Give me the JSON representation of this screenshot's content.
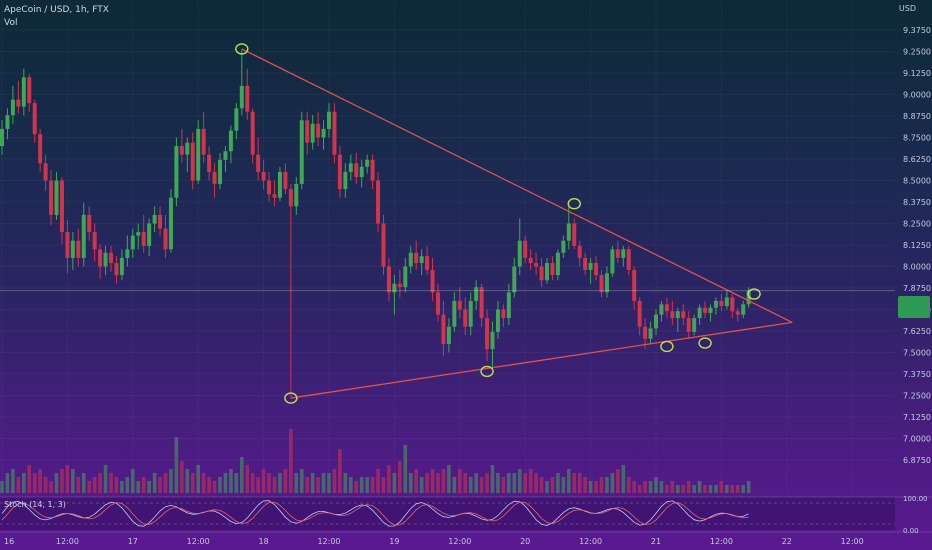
{
  "header": {
    "symbol_line": "ApeCoin / USD, 1h, FTX",
    "volume_label": "Vol",
    "currency": "USD"
  },
  "price_tag": {
    "line1": "",
    "line2": "",
    "color": "#2f9a55"
  },
  "stoch": {
    "label": "Stoch (14, 1, 3)",
    "levels": [
      "100.00",
      "0.00"
    ],
    "k_color": "#c0c8ff",
    "d_color": "#e06868"
  },
  "colors": {
    "up": "#3fa857",
    "down": "#d1344d",
    "trendline": "#e0524a",
    "marker": "#b7e14a"
  },
  "chart_data": {
    "type": "candlestick",
    "title": "ApeCoin / USD, 1h, FTX",
    "y_axis": {
      "ticks": [
        "9.3750",
        "9.2500",
        "9.1250",
        "9.0000",
        "8.8750",
        "8.7500",
        "8.6250",
        "8.5000",
        "8.3750",
        "8.2500",
        "8.1250",
        "8.0000",
        "7.8750",
        "7.7500",
        "7.6250",
        "7.5000",
        "7.3750",
        "7.2500",
        "7.1250",
        "7.0000",
        "6.8750"
      ],
      "range": [
        6.8,
        9.45
      ]
    },
    "x_axis": {
      "ticks": [
        {
          "label": "16",
          "index": 0
        },
        {
          "label": "12:00",
          "index": 12
        },
        {
          "label": "17",
          "index": 24
        },
        {
          "label": "12:00",
          "index": 36
        },
        {
          "label": "18",
          "index": 48
        },
        {
          "label": "12:00",
          "index": 60
        },
        {
          "label": "19",
          "index": 72
        },
        {
          "label": "12:00",
          "index": 84
        },
        {
          "label": "20",
          "index": 96
        },
        {
          "label": "12:00",
          "index": 108
        },
        {
          "label": "21",
          "index": 120
        },
        {
          "label": "12:00",
          "index": 132
        },
        {
          "label": "22",
          "index": 144
        },
        {
          "label": "12:00",
          "index": 156
        }
      ]
    },
    "candles": [
      [
        8.7,
        8.85,
        8.65,
        8.8
      ],
      [
        8.8,
        8.92,
        8.74,
        8.88
      ],
      [
        8.88,
        9.05,
        8.83,
        8.97
      ],
      [
        8.97,
        9.08,
        8.89,
        8.93
      ],
      [
        8.93,
        9.15,
        8.88,
        9.1
      ],
      [
        9.1,
        9.12,
        8.9,
        8.95
      ],
      [
        8.95,
        8.97,
        8.72,
        8.77
      ],
      [
        8.77,
        8.8,
        8.55,
        8.6
      ],
      [
        8.6,
        8.65,
        8.44,
        8.5
      ],
      [
        8.5,
        8.56,
        8.24,
        8.3
      ],
      [
        8.3,
        8.55,
        8.27,
        8.5
      ],
      [
        8.5,
        8.52,
        8.13,
        8.2
      ],
      [
        8.2,
        8.27,
        7.96,
        8.05
      ],
      [
        8.05,
        8.2,
        7.98,
        8.15
      ],
      [
        8.15,
        8.22,
        8.0,
        8.05
      ],
      [
        8.05,
        8.37,
        8.0,
        8.3
      ],
      [
        8.3,
        8.35,
        8.15,
        8.2
      ],
      [
        8.2,
        8.25,
        8.03,
        8.1
      ],
      [
        8.1,
        8.13,
        7.93,
        8.0
      ],
      [
        8.0,
        8.12,
        7.95,
        8.08
      ],
      [
        8.08,
        8.12,
        7.97,
        8.02
      ],
      [
        8.02,
        8.06,
        7.9,
        7.95
      ],
      [
        7.95,
        8.1,
        7.92,
        8.05
      ],
      [
        8.05,
        8.18,
        8.0,
        8.1
      ],
      [
        8.1,
        8.22,
        8.05,
        8.18
      ],
      [
        8.18,
        8.25,
        8.1,
        8.2
      ],
      [
        8.2,
        8.3,
        8.08,
        8.12
      ],
      [
        8.12,
        8.28,
        8.06,
        8.25
      ],
      [
        8.25,
        8.35,
        8.2,
        8.3
      ],
      [
        8.3,
        8.35,
        8.18,
        8.22
      ],
      [
        8.22,
        8.3,
        8.05,
        8.1
      ],
      [
        8.1,
        8.45,
        8.08,
        8.4
      ],
      [
        8.4,
        8.75,
        8.35,
        8.7
      ],
      [
        8.7,
        8.8,
        8.6,
        8.65
      ],
      [
        8.65,
        8.75,
        8.55,
        8.72
      ],
      [
        8.72,
        8.78,
        8.45,
        8.5
      ],
      [
        8.5,
        8.85,
        8.48,
        8.8
      ],
      [
        8.8,
        8.9,
        8.6,
        8.65
      ],
      [
        8.65,
        8.7,
        8.5,
        8.55
      ],
      [
        8.55,
        8.6,
        8.4,
        8.48
      ],
      [
        8.48,
        8.66,
        8.45,
        8.62
      ],
      [
        8.62,
        8.7,
        8.55,
        8.67
      ],
      [
        8.67,
        8.82,
        8.6,
        8.79
      ],
      [
        8.79,
        8.95,
        8.74,
        8.92
      ],
      [
        8.92,
        9.26,
        8.88,
        9.05
      ],
      [
        9.05,
        9.15,
        8.85,
        8.9
      ],
      [
        8.9,
        8.92,
        8.6,
        8.65
      ],
      [
        8.65,
        8.75,
        8.5,
        8.55
      ],
      [
        8.55,
        8.62,
        8.45,
        8.5
      ],
      [
        8.5,
        8.55,
        8.38,
        8.42
      ],
      [
        8.42,
        8.5,
        8.35,
        8.4
      ],
      [
        8.4,
        8.58,
        8.38,
        8.55
      ],
      [
        8.55,
        8.6,
        8.42,
        8.45
      ],
      [
        8.45,
        8.48,
        7.24,
        8.35
      ],
      [
        8.35,
        8.52,
        8.3,
        8.48
      ],
      [
        8.48,
        8.9,
        8.45,
        8.85
      ],
      [
        8.85,
        8.9,
        8.65,
        8.72
      ],
      [
        8.72,
        8.88,
        8.68,
        8.83
      ],
      [
        8.83,
        8.9,
        8.7,
        8.75
      ],
      [
        8.75,
        8.85,
        8.68,
        8.8
      ],
      [
        8.8,
        8.95,
        8.75,
        8.9
      ],
      [
        8.9,
        8.95,
        8.6,
        8.65
      ],
      [
        8.65,
        8.7,
        8.4,
        8.45
      ],
      [
        8.45,
        8.6,
        8.4,
        8.55
      ],
      [
        8.55,
        8.65,
        8.5,
        8.6
      ],
      [
        8.6,
        8.66,
        8.48,
        8.52
      ],
      [
        8.52,
        8.62,
        8.46,
        8.58
      ],
      [
        8.58,
        8.65,
        8.54,
        8.62
      ],
      [
        8.62,
        8.65,
        8.45,
        8.5
      ],
      [
        8.5,
        8.55,
        8.2,
        8.25
      ],
      [
        8.25,
        8.3,
        7.95,
        8.0
      ],
      [
        8.0,
        8.05,
        7.8,
        7.85
      ],
      [
        7.85,
        7.95,
        7.72,
        7.9
      ],
      [
        7.9,
        7.98,
        7.82,
        7.88
      ],
      [
        7.88,
        8.05,
        7.85,
        8.0
      ],
      [
        8.0,
        8.12,
        7.96,
        8.08
      ],
      [
        8.08,
        8.15,
        7.98,
        8.02
      ],
      [
        8.02,
        8.1,
        7.95,
        8.06
      ],
      [
        8.06,
        8.12,
        7.95,
        7.98
      ],
      [
        7.98,
        8.05,
        7.8,
        7.85
      ],
      [
        7.85,
        7.9,
        7.68,
        7.72
      ],
      [
        7.72,
        7.8,
        7.48,
        7.55
      ],
      [
        7.55,
        7.7,
        7.5,
        7.65
      ],
      [
        7.65,
        7.85,
        7.62,
        7.8
      ],
      [
        7.8,
        7.88,
        7.7,
        7.75
      ],
      [
        7.75,
        7.82,
        7.6,
        7.65
      ],
      [
        7.65,
        7.85,
        7.6,
        7.8
      ],
      [
        7.8,
        7.92,
        7.75,
        7.88
      ],
      [
        7.88,
        7.9,
        7.65,
        7.7
      ],
      [
        7.7,
        7.75,
        7.45,
        7.52
      ],
      [
        7.52,
        7.68,
        7.4,
        7.62
      ],
      [
        7.62,
        7.8,
        7.58,
        7.75
      ],
      [
        7.75,
        7.78,
        7.65,
        7.7
      ],
      [
        7.7,
        7.9,
        7.66,
        7.85
      ],
      [
        7.85,
        8.05,
        7.82,
        8.0
      ],
      [
        8.0,
        8.28,
        7.95,
        8.15
      ],
      [
        8.15,
        8.18,
        8.02,
        8.05
      ],
      [
        8.05,
        8.1,
        7.98,
        8.02
      ],
      [
        8.02,
        8.08,
        7.95,
        8.0
      ],
      [
        8.0,
        8.05,
        7.88,
        7.92
      ],
      [
        7.92,
        8.05,
        7.9,
        8.02
      ],
      [
        8.02,
        8.06,
        7.92,
        7.95
      ],
      [
        7.95,
        8.1,
        7.92,
        8.08
      ],
      [
        8.08,
        8.18,
        8.05,
        8.15
      ],
      [
        8.15,
        8.38,
        8.1,
        8.25
      ],
      [
        8.25,
        8.28,
        8.1,
        8.12
      ],
      [
        8.12,
        8.15,
        8.0,
        8.05
      ],
      [
        8.05,
        8.08,
        7.95,
        7.98
      ],
      [
        7.98,
        8.05,
        7.9,
        8.02
      ],
      [
        8.02,
        8.06,
        7.92,
        7.95
      ],
      [
        7.95,
        7.98,
        7.82,
        7.85
      ],
      [
        7.85,
        8.0,
        7.82,
        7.96
      ],
      [
        7.96,
        8.12,
        7.94,
        8.1
      ],
      [
        8.1,
        8.15,
        8.02,
        8.05
      ],
      [
        8.05,
        8.12,
        8.0,
        8.1
      ],
      [
        8.1,
        8.12,
        7.95,
        7.98
      ],
      [
        7.98,
        8.0,
        7.75,
        7.8
      ],
      [
        7.8,
        7.82,
        7.6,
        7.65
      ],
      [
        7.65,
        7.7,
        7.52,
        7.58
      ],
      [
        7.58,
        7.68,
        7.55,
        7.64
      ],
      [
        7.64,
        7.75,
        7.6,
        7.72
      ],
      [
        7.72,
        7.8,
        7.68,
        7.78
      ],
      [
        7.78,
        7.82,
        7.7,
        7.74
      ],
      [
        7.74,
        7.8,
        7.66,
        7.7
      ],
      [
        7.7,
        7.76,
        7.62,
        7.74
      ],
      [
        7.74,
        7.78,
        7.66,
        7.7
      ],
      [
        7.7,
        7.74,
        7.58,
        7.62
      ],
      [
        7.62,
        7.72,
        7.6,
        7.7
      ],
      [
        7.7,
        7.78,
        7.66,
        7.76
      ],
      [
        7.76,
        7.8,
        7.7,
        7.73
      ],
      [
        7.73,
        7.78,
        7.68,
        7.76
      ],
      [
        7.76,
        7.82,
        7.72,
        7.8
      ],
      [
        7.8,
        7.84,
        7.74,
        7.77
      ],
      [
        7.77,
        7.86,
        7.75,
        7.82
      ],
      [
        7.82,
        7.84,
        7.7,
        7.74
      ],
      [
        7.74,
        7.76,
        7.68,
        7.72
      ],
      [
        7.72,
        7.8,
        7.7,
        7.78
      ],
      [
        7.78,
        7.88,
        7.76,
        7.86
      ]
    ],
    "volume": [
      3,
      5,
      6,
      4,
      5,
      7,
      5,
      6,
      4,
      3,
      5,
      6,
      7,
      6,
      4,
      5,
      3,
      4,
      5,
      7,
      5,
      4,
      3,
      4,
      6,
      3,
      4,
      3,
      5,
      4,
      5,
      6,
      14,
      8,
      6,
      5,
      7,
      5,
      4,
      3,
      4,
      5,
      6,
      5,
      9,
      7,
      5,
      4,
      6,
      5,
      4,
      5,
      6,
      16,
      5,
      6,
      4,
      5,
      4,
      5,
      5,
      6,
      11,
      5,
      4,
      3,
      4,
      4,
      4,
      6,
      4,
      7,
      5,
      8,
      12,
      5,
      6,
      4,
      5,
      6,
      5,
      6,
      7,
      4,
      6,
      5,
      4,
      5,
      4,
      5,
      7,
      5,
      4,
      5,
      5,
      6,
      5,
      6,
      5,
      4,
      3,
      4,
      5,
      4,
      6,
      5,
      5,
      4,
      3,
      3,
      4,
      4,
      5,
      6,
      7,
      4,
      3,
      2,
      3,
      3,
      4,
      3,
      2,
      3,
      2,
      2,
      3,
      2,
      3,
      2,
      2,
      2,
      3,
      2,
      2,
      2,
      2,
      3
    ],
    "trendlines": [
      {
        "name": "upper-resistance",
        "from": {
          "index": 44,
          "price": 9.265
        },
        "to": {
          "index": 145,
          "price": 7.675
        }
      },
      {
        "name": "lower-support",
        "from": {
          "index": 53,
          "price": 7.235
        },
        "to": {
          "index": 145,
          "price": 7.675
        }
      }
    ],
    "markers": [
      {
        "index": 44,
        "price": 9.265
      },
      {
        "index": 53,
        "price": 7.235
      },
      {
        "index": 89,
        "price": 7.39
      },
      {
        "index": 105,
        "price": 8.365
      },
      {
        "index": 122,
        "price": 7.535
      },
      {
        "index": 129,
        "price": 7.555
      },
      {
        "index": 138,
        "price": 7.84
      }
    ],
    "last_price": 7.86
  }
}
